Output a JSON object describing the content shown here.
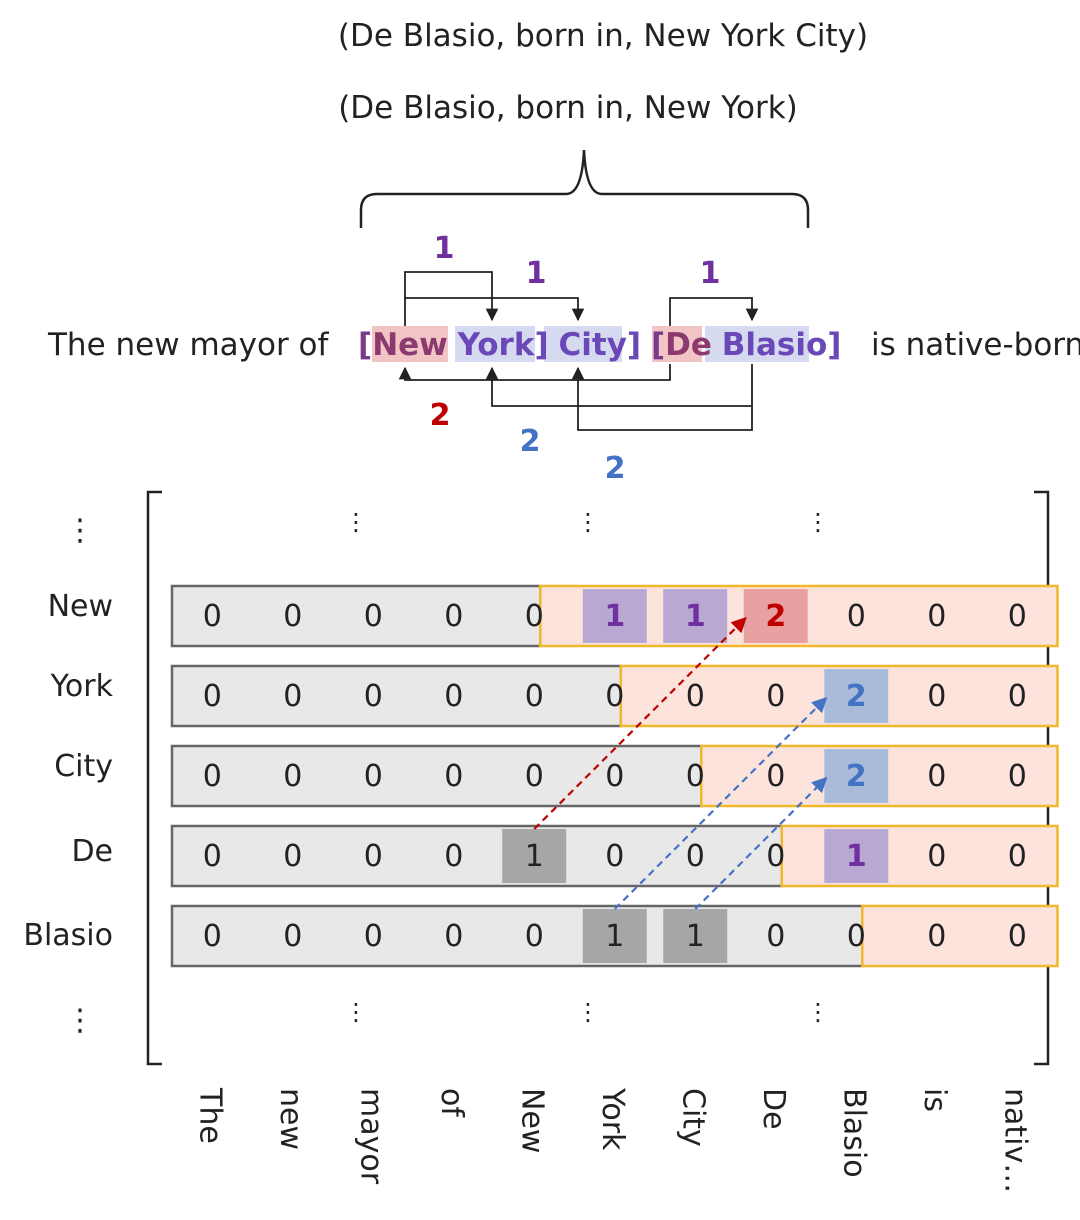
{
  "triples": [
    "(De Blasio, born in, New York City)",
    "(De Blasio, born in, New York)"
  ],
  "sentence": {
    "prefix": "The new mayor of",
    "tokens": [
      {
        "text": "[",
        "color": "#7a3a8c",
        "bold": true
      },
      {
        "text": "New",
        "color": "#8b3a6e",
        "bold": true,
        "bg": "#f2c4c6"
      },
      {
        "text": " ",
        "color": "#222222",
        "bold": false
      },
      {
        "text": "York]",
        "color": "#6a48b8",
        "bold": true,
        "bg": "#d6daf0"
      },
      {
        "text": " ",
        "color": "#222222",
        "bold": false
      },
      {
        "text": "City]",
        "color": "#6a48b8",
        "bold": true,
        "bg": "#d6daf0"
      },
      {
        "text": " ",
        "color": "#222222",
        "bold": false
      },
      {
        "text": "[",
        "color": "#7a3a8c",
        "bold": true
      },
      {
        "text": "De",
        "color": "#8b3a6e",
        "bold": true,
        "bg": "#f2c4c6"
      },
      {
        "text": " ",
        "color": "#222222",
        "bold": false
      },
      {
        "text": "Blasio]",
        "color": "#6a48b8",
        "bold": true,
        "bg": "#d6daf0"
      }
    ],
    "suffix": "is native-born."
  },
  "arc_labels": {
    "top": [
      "1",
      "1",
      "1"
    ],
    "bottom": [
      "2",
      "2",
      "2"
    ]
  },
  "colors": {
    "purple": "#7030a0",
    "red": "#c00000",
    "blue": "#4472c4",
    "row_gray": "#e8e8e8",
    "row_pink": "#fce4dc",
    "row_border_gray": "#666666",
    "row_border_gold": "#f2b62a",
    "cell_purple": "#b9a8d2",
    "cell_red": "#e8a0a0",
    "cell_blue": "#a9bbd8",
    "cell_dark": "#a6a6a6"
  },
  "matrix": {
    "row_labels": [
      "⋮",
      "New",
      "York",
      "City",
      "De",
      "Blasio",
      "⋮"
    ],
    "col_labels": [
      "The",
      "new",
      "mayor",
      "of",
      "New",
      "York",
      "City",
      "De",
      "Blasio",
      "is",
      "nativ…"
    ],
    "ellipsis": "⋮",
    "rows": [
      {
        "values": [
          "0",
          "0",
          "0",
          "0",
          "0",
          "1",
          "1",
          "2",
          "0",
          "0",
          "0"
        ],
        "split_after": 4,
        "highlights": [
          {
            "col": 5,
            "style": "purple"
          },
          {
            "col": 6,
            "style": "purple"
          },
          {
            "col": 7,
            "style": "red"
          }
        ]
      },
      {
        "values": [
          "0",
          "0",
          "0",
          "0",
          "0",
          "0",
          "0",
          "0",
          "2",
          "0",
          "0"
        ],
        "split_after": 5,
        "highlights": [
          {
            "col": 8,
            "style": "blue"
          }
        ]
      },
      {
        "values": [
          "0",
          "0",
          "0",
          "0",
          "0",
          "0",
          "0",
          "0",
          "2",
          "0",
          "0"
        ],
        "split_after": 6,
        "highlights": [
          {
            "col": 8,
            "style": "blue"
          }
        ]
      },
      {
        "values": [
          "0",
          "0",
          "0",
          "0",
          "1",
          "0",
          "0",
          "0",
          "1",
          "0",
          "0"
        ],
        "split_after": 7,
        "highlights": [
          {
            "col": 4,
            "style": "dark"
          },
          {
            "col": 8,
            "style": "purple"
          }
        ]
      },
      {
        "values": [
          "0",
          "0",
          "0",
          "0",
          "0",
          "1",
          "1",
          "0",
          "0",
          "0",
          "0"
        ],
        "split_after": 8,
        "highlights": [
          {
            "col": 5,
            "style": "dark"
          },
          {
            "col": 6,
            "style": "dark"
          }
        ]
      }
    ],
    "dashed_links": [
      {
        "from_row": 3,
        "from_col": 4,
        "to_row": 0,
        "to_col": 7,
        "style": "red"
      },
      {
        "from_row": 4,
        "from_col": 5,
        "to_row": 1,
        "to_col": 8,
        "style": "blue"
      },
      {
        "from_row": 4,
        "from_col": 6,
        "to_row": 2,
        "to_col": 8,
        "style": "blue"
      }
    ]
  }
}
